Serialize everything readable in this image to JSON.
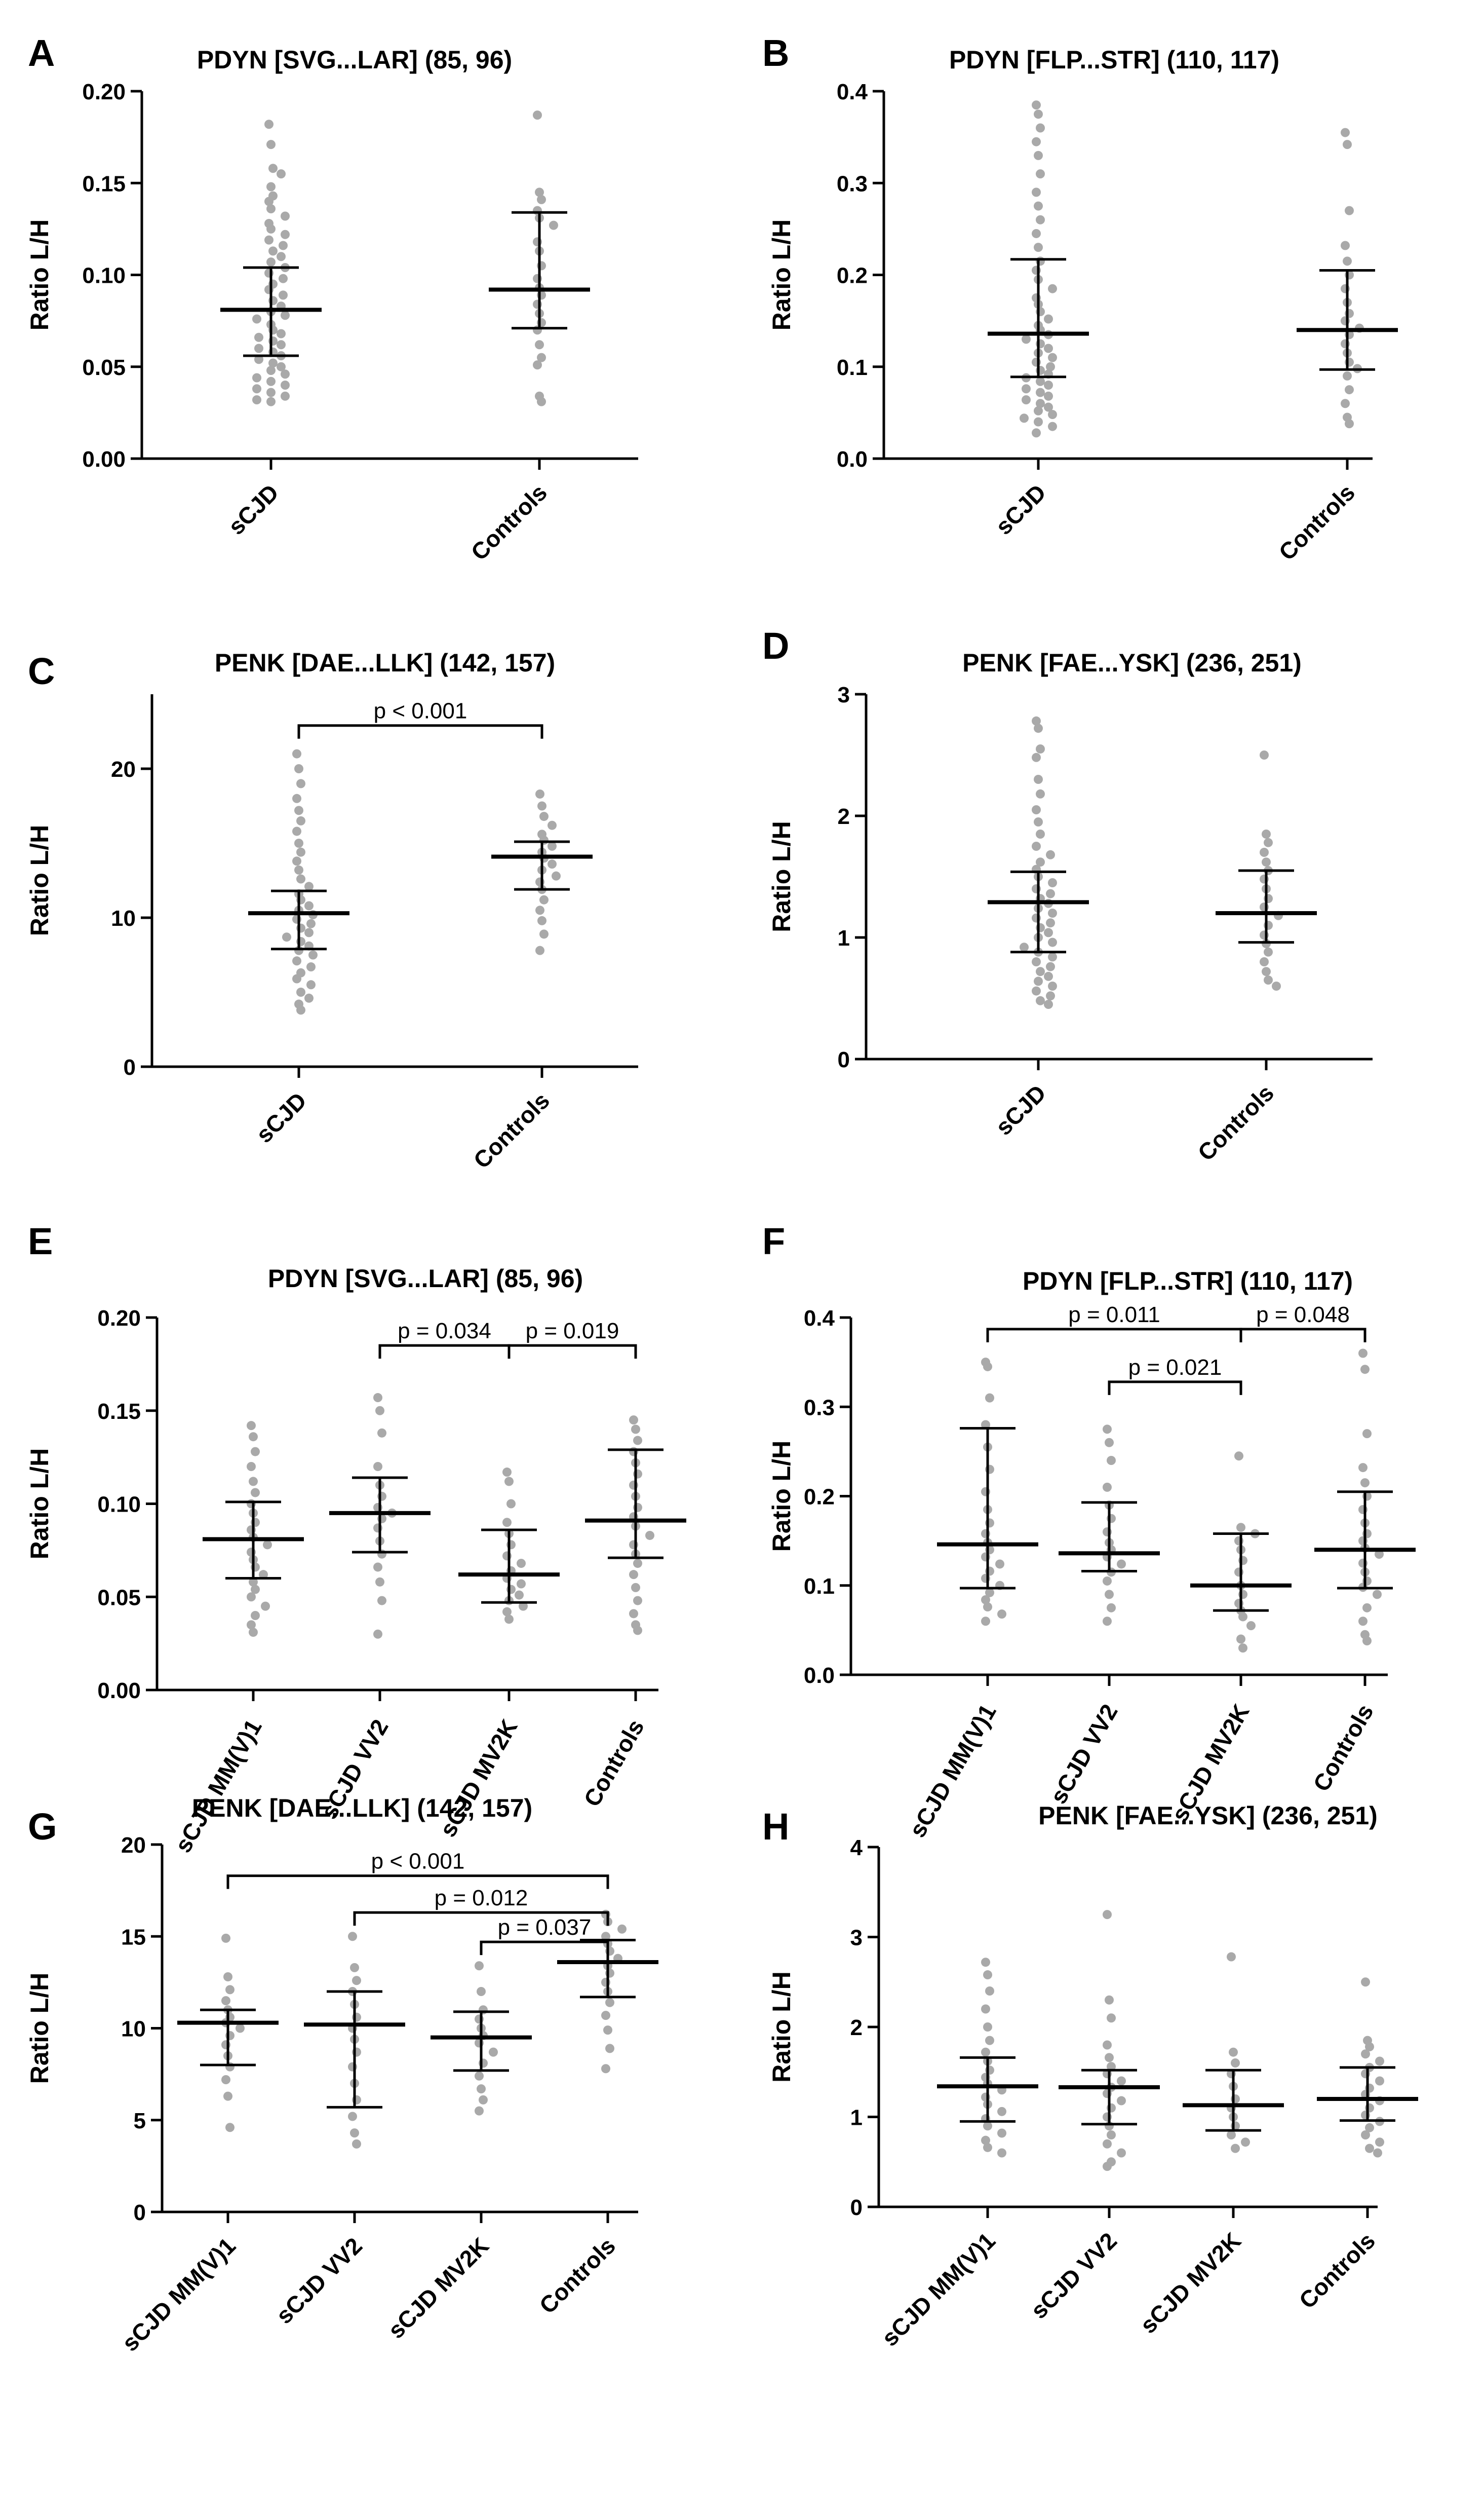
{
  "chart_data": [
    {
      "panel": "A",
      "type": "scatter",
      "title": "PDYN [SVG...LAR] (85, 96)",
      "ylabel": "Ratio L/H",
      "ylim": [
        0,
        0.2
      ],
      "yticks": [
        "0.00",
        "0.05",
        "0.10",
        "0.15",
        "0.20"
      ],
      "categories": [
        "sCJD",
        "Controls"
      ],
      "groups": [
        {
          "name": "sCJD",
          "median": 0.081,
          "q1": 0.056,
          "q3": 0.104,
          "points": [
            0.182,
            0.171,
            0.158,
            0.155,
            0.148,
            0.143,
            0.14,
            0.136,
            0.132,
            0.128,
            0.125,
            0.122,
            0.119,
            0.116,
            0.113,
            0.11,
            0.107,
            0.104,
            0.101,
            0.098,
            0.095,
            0.092,
            0.089,
            0.086,
            0.083,
            0.08,
            0.078,
            0.076,
            0.073,
            0.07,
            0.068,
            0.066,
            0.064,
            0.062,
            0.06,
            0.058,
            0.056,
            0.054,
            0.052,
            0.05,
            0.048,
            0.046,
            0.044,
            0.042,
            0.04,
            0.038,
            0.036,
            0.034,
            0.032,
            0.031
          ]
        },
        {
          "name": "Controls",
          "median": 0.092,
          "q1": 0.071,
          "q3": 0.134,
          "points": [
            0.187,
            0.145,
            0.141,
            0.135,
            0.131,
            0.127,
            0.118,
            0.113,
            0.105,
            0.098,
            0.093,
            0.089,
            0.084,
            0.079,
            0.074,
            0.07,
            0.062,
            0.055,
            0.051,
            0.034,
            0.031
          ]
        }
      ],
      "brackets": []
    },
    {
      "panel": "B",
      "type": "scatter",
      "title": "PDYN [FLP...STR] (110, 117)",
      "ylabel": "Ratio L/H",
      "ylim": [
        0,
        0.4
      ],
      "yticks": [
        "0.0",
        "0.1",
        "0.2",
        "0.3",
        "0.4"
      ],
      "categories": [
        "sCJD",
        "Controls"
      ],
      "groups": [
        {
          "name": "sCJD",
          "median": 0.136,
          "q1": 0.089,
          "q3": 0.217,
          "points": [
            0.385,
            0.375,
            0.36,
            0.345,
            0.33,
            0.31,
            0.29,
            0.275,
            0.26,
            0.245,
            0.23,
            0.215,
            0.205,
            0.195,
            0.185,
            0.175,
            0.168,
            0.16,
            0.152,
            0.145,
            0.14,
            0.135,
            0.13,
            0.125,
            0.12,
            0.115,
            0.11,
            0.105,
            0.1,
            0.096,
            0.092,
            0.088,
            0.084,
            0.08,
            0.076,
            0.072,
            0.068,
            0.064,
            0.06,
            0.056,
            0.052,
            0.048,
            0.044,
            0.04,
            0.035,
            0.028
          ]
        },
        {
          "name": "Controls",
          "median": 0.14,
          "q1": 0.097,
          "q3": 0.205,
          "points": [
            0.355,
            0.342,
            0.27,
            0.232,
            0.215,
            0.2,
            0.185,
            0.17,
            0.158,
            0.15,
            0.142,
            0.135,
            0.125,
            0.115,
            0.105,
            0.098,
            0.09,
            0.075,
            0.06,
            0.045,
            0.038
          ]
        }
      ],
      "brackets": []
    },
    {
      "panel": "C",
      "type": "scatter",
      "title": "PENK [DAE...LLK] (142, 157)",
      "ylabel": "Ratio L/H",
      "ylim": [
        0,
        25
      ],
      "yticks": [
        "0",
        "10",
        "20"
      ],
      "ytickValues": [
        0,
        10,
        20
      ],
      "categories": [
        "sCJD",
        "Controls"
      ],
      "groups": [
        {
          "name": "sCJD",
          "median": 10.3,
          "q1": 7.9,
          "q3": 11.8,
          "points": [
            21.0,
            20.0,
            19.0,
            18.0,
            17.2,
            16.5,
            15.8,
            15.0,
            14.4,
            13.8,
            13.2,
            12.6,
            12.1,
            11.6,
            11.2,
            10.8,
            10.5,
            10.2,
            9.9,
            9.6,
            9.3,
            9.0,
            8.7,
            8.4,
            8.1,
            7.8,
            7.5,
            7.1,
            6.7,
            6.3,
            5.9,
            5.5,
            5.0,
            4.6,
            4.2,
            3.8
          ]
        },
        {
          "name": "Controls",
          "median": 14.1,
          "q1": 11.9,
          "q3": 15.1,
          "points": [
            18.3,
            17.5,
            16.8,
            16.2,
            15.6,
            15.2,
            14.8,
            14.4,
            14.0,
            13.6,
            13.2,
            12.8,
            12.4,
            11.9,
            11.2,
            10.5,
            9.8,
            8.9,
            7.8
          ]
        }
      ],
      "brackets": [
        {
          "from": 0,
          "to": 1,
          "y": 22.9,
          "label": "p < 0.001"
        }
      ]
    },
    {
      "panel": "D",
      "type": "scatter",
      "title": "PENK [FAE...YSK] (236, 251)",
      "ylabel": "Ratio L/H",
      "ylim": [
        0,
        3
      ],
      "yticks": [
        "0",
        "1",
        "2",
        "3"
      ],
      "categories": [
        "sCJD",
        "Controls"
      ],
      "groups": [
        {
          "name": "sCJD",
          "median": 1.29,
          "q1": 0.88,
          "q3": 1.54,
          "points": [
            2.78,
            2.72,
            2.55,
            2.48,
            2.3,
            2.18,
            2.05,
            1.95,
            1.85,
            1.75,
            1.68,
            1.62,
            1.56,
            1.5,
            1.45,
            1.4,
            1.36,
            1.32,
            1.28,
            1.24,
            1.2,
            1.16,
            1.12,
            1.08,
            1.04,
            1.0,
            0.96,
            0.92,
            0.88,
            0.84,
            0.8,
            0.76,
            0.72,
            0.68,
            0.64,
            0.6,
            0.56,
            0.52,
            0.48,
            0.45
          ]
        },
        {
          "name": "Controls",
          "median": 1.2,
          "q1": 0.96,
          "q3": 1.55,
          "points": [
            2.5,
            1.85,
            1.78,
            1.7,
            1.62,
            1.55,
            1.48,
            1.4,
            1.32,
            1.25,
            1.18,
            1.1,
            1.02,
            0.95,
            0.88,
            0.8,
            0.72,
            0.65,
            0.6
          ]
        }
      ],
      "brackets": []
    },
    {
      "panel": "E",
      "type": "scatter",
      "title": "PDYN [SVG...LAR] (85, 96)",
      "ylabel": "Ratio L/H",
      "ylim": [
        0,
        0.2
      ],
      "yticks": [
        "0.00",
        "0.05",
        "0.10",
        "0.15",
        "0.20"
      ],
      "categories": [
        "sCJD MM(V)1",
        "sCJD VV2",
        "sCJD MV2K",
        "Controls"
      ],
      "groups": [
        {
          "name": "sCJD MM(V)1",
          "median": 0.081,
          "q1": 0.06,
          "q3": 0.101,
          "points": [
            0.142,
            0.136,
            0.128,
            0.12,
            0.112,
            0.106,
            0.1,
            0.095,
            0.09,
            0.086,
            0.082,
            0.078,
            0.074,
            0.07,
            0.066,
            0.062,
            0.058,
            0.054,
            0.05,
            0.045,
            0.04,
            0.035,
            0.031
          ]
        },
        {
          "name": "sCJD VV2",
          "median": 0.095,
          "q1": 0.074,
          "q3": 0.114,
          "points": [
            0.157,
            0.15,
            0.138,
            0.12,
            0.11,
            0.104,
            0.098,
            0.095,
            0.092,
            0.087,
            0.08,
            0.073,
            0.066,
            0.058,
            0.048,
            0.03
          ]
        },
        {
          "name": "sCJD MV2K",
          "median": 0.062,
          "q1": 0.047,
          "q3": 0.086,
          "points": [
            0.117,
            0.112,
            0.1,
            0.09,
            0.084,
            0.078,
            0.072,
            0.068,
            0.064,
            0.06,
            0.057,
            0.054,
            0.051,
            0.048,
            0.045,
            0.042,
            0.038
          ]
        },
        {
          "name": "Controls",
          "median": 0.091,
          "q1": 0.071,
          "q3": 0.129,
          "points": [
            0.145,
            0.14,
            0.134,
            0.128,
            0.122,
            0.116,
            0.11,
            0.104,
            0.098,
            0.093,
            0.088,
            0.083,
            0.078,
            0.073,
            0.068,
            0.062,
            0.055,
            0.048,
            0.041,
            0.035,
            0.032
          ]
        }
      ],
      "brackets": [
        {
          "from": 1,
          "to": 2,
          "y": 0.185,
          "label": "p = 0.034"
        },
        {
          "from": 2,
          "to": 3,
          "y": 0.185,
          "label": "p = 0.019"
        }
      ]
    },
    {
      "panel": "F",
      "type": "scatter",
      "title": "PDYN [FLP...STR] (110, 117)",
      "ylabel": "Ratio L/H",
      "ylim": [
        0,
        0.4
      ],
      "yticks": [
        "0.0",
        "0.1",
        "0.2",
        "0.3",
        "0.4"
      ],
      "categories": [
        "sCJD MM(V)1",
        "sCJD VV2",
        "sCJD MV2K",
        "Controls"
      ],
      "groups": [
        {
          "name": "sCJD MM(V)1",
          "median": 0.146,
          "q1": 0.097,
          "q3": 0.276,
          "points": [
            0.35,
            0.345,
            0.31,
            0.28,
            0.255,
            0.23,
            0.205,
            0.185,
            0.17,
            0.158,
            0.148,
            0.14,
            0.132,
            0.124,
            0.116,
            0.108,
            0.1,
            0.092,
            0.084,
            0.076,
            0.068,
            0.06
          ]
        },
        {
          "name": "sCJD VV2",
          "median": 0.136,
          "q1": 0.116,
          "q3": 0.193,
          "points": [
            0.275,
            0.26,
            0.24,
            0.21,
            0.19,
            0.175,
            0.16,
            0.148,
            0.14,
            0.132,
            0.124,
            0.115,
            0.105,
            0.09,
            0.075,
            0.06
          ]
        },
        {
          "name": "sCJD MV2K",
          "median": 0.1,
          "q1": 0.072,
          "q3": 0.158,
          "points": [
            0.245,
            0.165,
            0.158,
            0.15,
            0.14,
            0.128,
            0.115,
            0.1,
            0.09,
            0.08,
            0.072,
            0.065,
            0.055,
            0.04,
            0.03
          ]
        },
        {
          "name": "Controls",
          "median": 0.14,
          "q1": 0.097,
          "q3": 0.205,
          "points": [
            0.36,
            0.342,
            0.27,
            0.232,
            0.215,
            0.2,
            0.185,
            0.17,
            0.158,
            0.15,
            0.142,
            0.135,
            0.125,
            0.115,
            0.105,
            0.098,
            0.09,
            0.075,
            0.06,
            0.045,
            0.038
          ]
        }
      ],
      "brackets": [
        {
          "from": 0,
          "to": 2,
          "y": 0.387,
          "label": "p = 0.011"
        },
        {
          "from": 2,
          "to": 3,
          "y": 0.387,
          "label": "p = 0.048"
        },
        {
          "from": 1,
          "to": 2,
          "y": 0.328,
          "label": "p = 0.021"
        }
      ]
    },
    {
      "panel": "G",
      "type": "scatter",
      "title": "PENK [DAE...LLK] (142, 157)",
      "ylabel": "Ratio L/H",
      "ylim": [
        0,
        20
      ],
      "yticks": [
        "0",
        "5",
        "10",
        "15",
        "20"
      ],
      "ytickValues": [
        0,
        5,
        10,
        15,
        20
      ],
      "categories": [
        "sCJD MM(V)1",
        "sCJD VV2",
        "sCJD MV2K",
        "Controls"
      ],
      "groups": [
        {
          "name": "sCJD MM(V)1",
          "median": 10.3,
          "q1": 8.0,
          "q3": 11.0,
          "points": [
            14.9,
            12.8,
            12.1,
            11.5,
            11.0,
            10.6,
            10.3,
            10.0,
            9.6,
            9.1,
            8.5,
            7.9,
            7.2,
            6.3,
            4.6
          ]
        },
        {
          "name": "sCJD VV2",
          "median": 10.2,
          "q1": 5.7,
          "q3": 12.0,
          "points": [
            15.0,
            13.3,
            12.6,
            12.0,
            11.3,
            10.6,
            10.0,
            9.4,
            8.7,
            7.9,
            7.0,
            6.1,
            5.2,
            4.3,
            3.7
          ]
        },
        {
          "name": "sCJD MV2K",
          "median": 9.5,
          "q1": 7.7,
          "q3": 10.9,
          "points": [
            13.4,
            12.0,
            11.0,
            10.5,
            10.0,
            9.6,
            9.2,
            8.7,
            8.1,
            7.4,
            6.7,
            6.1,
            5.5
          ]
        },
        {
          "name": "Controls",
          "median": 13.6,
          "q1": 11.7,
          "q3": 14.8,
          "points": [
            16.2,
            15.8,
            15.4,
            15.0,
            14.6,
            14.2,
            13.8,
            13.4,
            13.0,
            12.5,
            12.0,
            11.4,
            10.7,
            9.9,
            8.9,
            7.8
          ]
        }
      ],
      "brackets": [
        {
          "from": 0,
          "to": 3,
          "y": 18.3,
          "label": "p < 0.001"
        },
        {
          "from": 1,
          "to": 3,
          "y": 16.3,
          "label": "p = 0.012"
        },
        {
          "from": 2,
          "to": 3,
          "y": 14.7,
          "label": "p = 0.037"
        }
      ]
    },
    {
      "panel": "H",
      "type": "scatter",
      "title": "PENK [FAE...YSK] (236, 251)",
      "ylabel": "Ratio L/H",
      "ylim": [
        0,
        4
      ],
      "yticks": [
        "0",
        "1",
        "2",
        "3",
        "4"
      ],
      "categories": [
        "sCJD MM(V)1",
        "sCJD VV2",
        "sCJD MV2K",
        "Controls"
      ],
      "groups": [
        {
          "name": "sCJD MM(V)1",
          "median": 1.34,
          "q1": 0.95,
          "q3": 1.66,
          "points": [
            2.72,
            2.58,
            2.4,
            2.2,
            2.0,
            1.85,
            1.72,
            1.62,
            1.52,
            1.44,
            1.37,
            1.3,
            1.22,
            1.14,
            1.06,
            0.98,
            0.9,
            0.82,
            0.74,
            0.66,
            0.6
          ]
        },
        {
          "name": "sCJD VV2",
          "median": 1.33,
          "q1": 0.92,
          "q3": 1.52,
          "points": [
            3.25,
            2.3,
            2.1,
            1.8,
            1.66,
            1.56,
            1.48,
            1.4,
            1.33,
            1.26,
            1.18,
            1.1,
            1.0,
            0.9,
            0.8,
            0.7,
            0.6,
            0.5,
            0.45
          ]
        },
        {
          "name": "sCJD MV2K",
          "median": 1.13,
          "q1": 0.85,
          "q3": 1.52,
          "points": [
            2.78,
            1.72,
            1.6,
            1.48,
            1.34,
            1.2,
            1.1,
            1.0,
            0.9,
            0.8,
            0.72,
            0.65
          ]
        },
        {
          "name": "Controls",
          "median": 1.2,
          "q1": 0.96,
          "q3": 1.55,
          "points": [
            2.5,
            1.85,
            1.78,
            1.7,
            1.62,
            1.55,
            1.48,
            1.4,
            1.32,
            1.25,
            1.18,
            1.1,
            1.02,
            0.95,
            0.88,
            0.8,
            0.72,
            0.65,
            0.6
          ]
        }
      ],
      "brackets": []
    }
  ],
  "colors": {
    "points": "#a9a9a9",
    "lines": "#000000"
  }
}
